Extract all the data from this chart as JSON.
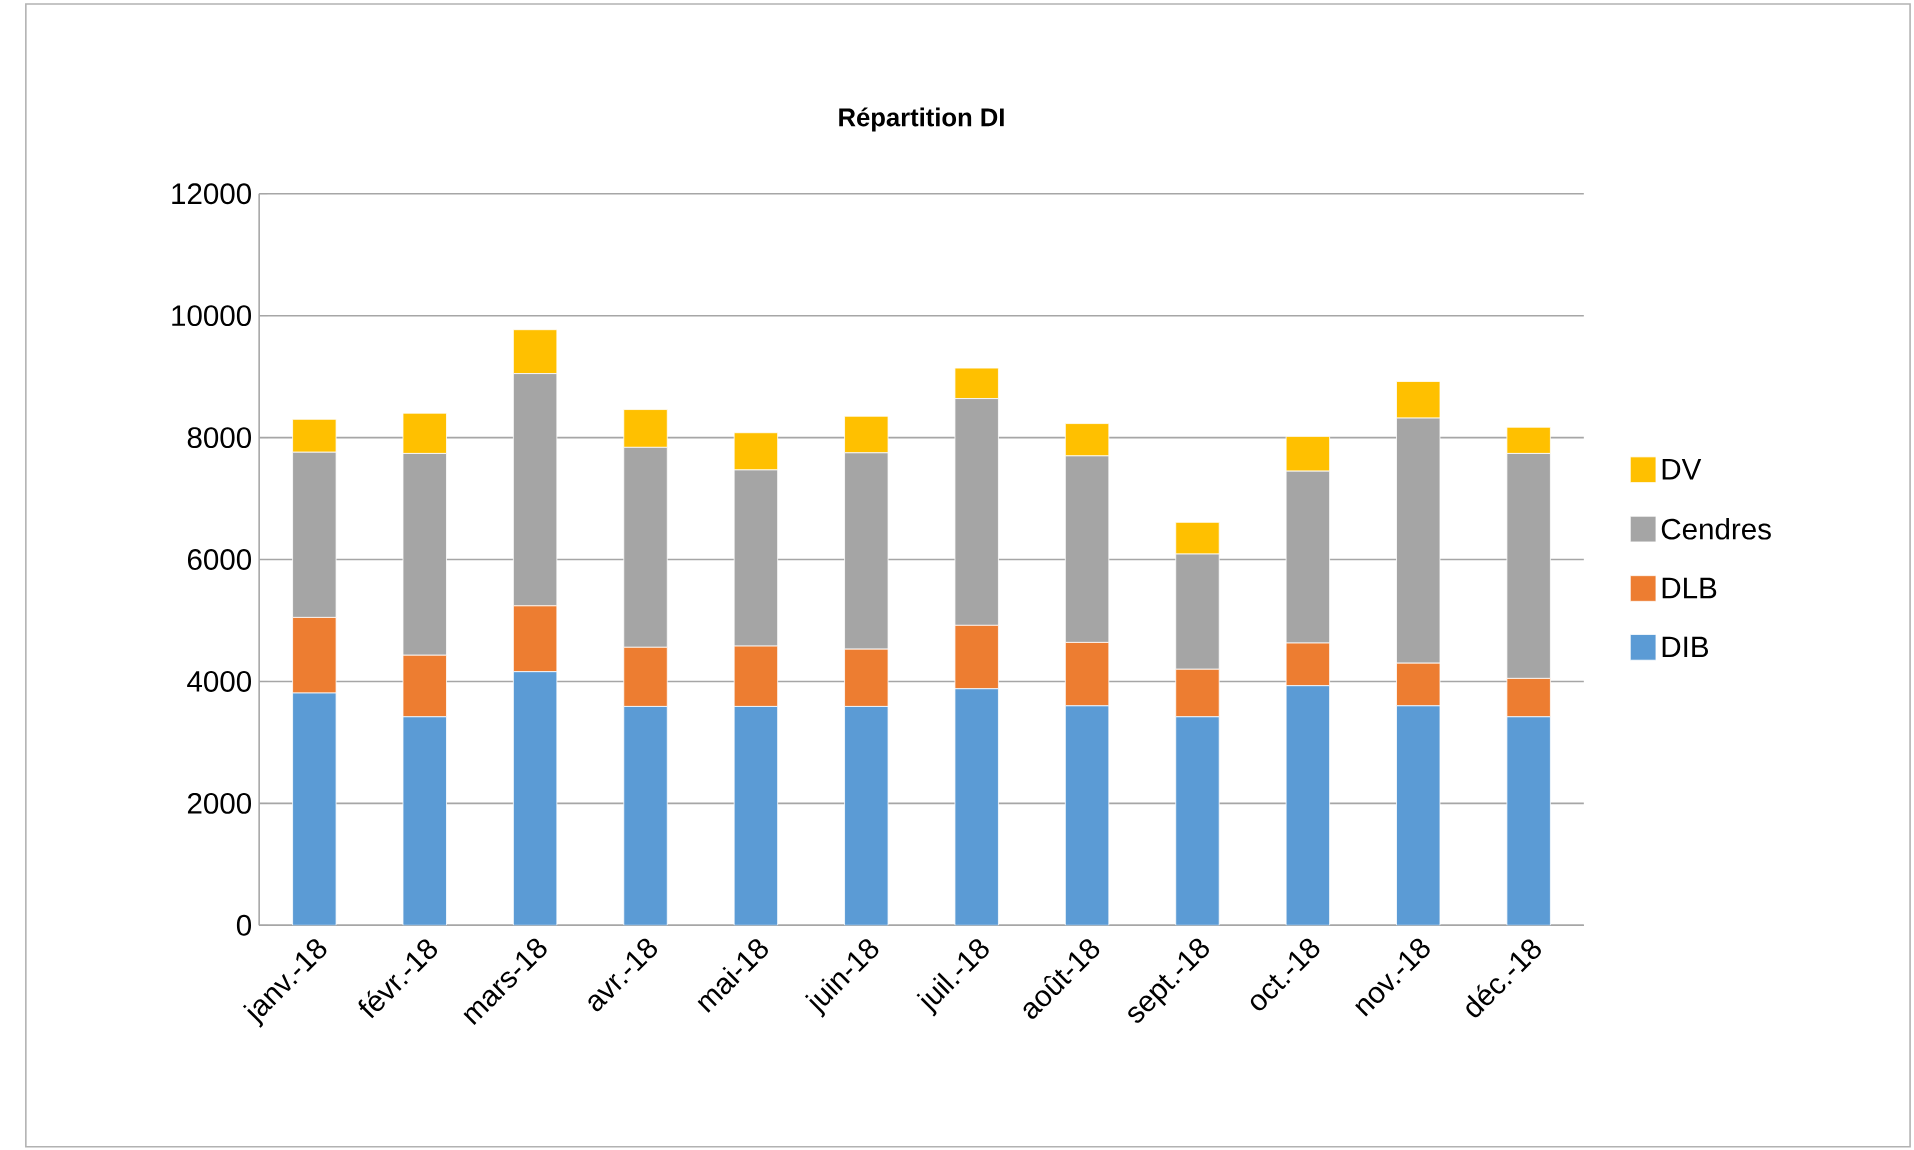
{
  "chart_data": {
    "type": "bar",
    "title": "Répartition DI",
    "stacked": true,
    "categories": [
      "janv.-18",
      "févr.-18",
      "mars-18",
      "avr.-18",
      "mai-18",
      "juin-18",
      "juil.-18",
      "août-18",
      "sept.-18",
      "oct.-18",
      "nov.-18",
      "déc.-18"
    ],
    "series": [
      {
        "name": "DIB",
        "color": "#5b9bd5",
        "values": [
          3810,
          3420,
          4160,
          3590,
          3590,
          3590,
          3880,
          3600,
          3420,
          3930,
          3600,
          3420
        ]
      },
      {
        "name": "DLB",
        "color": "#ed7d31",
        "values": [
          1240,
          1010,
          1080,
          970,
          990,
          940,
          1040,
          1040,
          780,
          700,
          700,
          630
        ]
      },
      {
        "name": "Cendres",
        "color": "#a5a5a5",
        "values": [
          2710,
          3310,
          3810,
          3280,
          2890,
          3220,
          3720,
          3060,
          1890,
          2820,
          4020,
          3690
        ]
      },
      {
        "name": "DV",
        "color": "#ffc000",
        "values": [
          540,
          660,
          720,
          620,
          610,
          600,
          500,
          530,
          520,
          570,
          600,
          430
        ]
      }
    ],
    "ylim": [
      0,
      12000
    ],
    "yticks": [
      0,
      2000,
      4000,
      6000,
      8000,
      10000,
      12000
    ],
    "grid": "y",
    "legend": "right"
  }
}
